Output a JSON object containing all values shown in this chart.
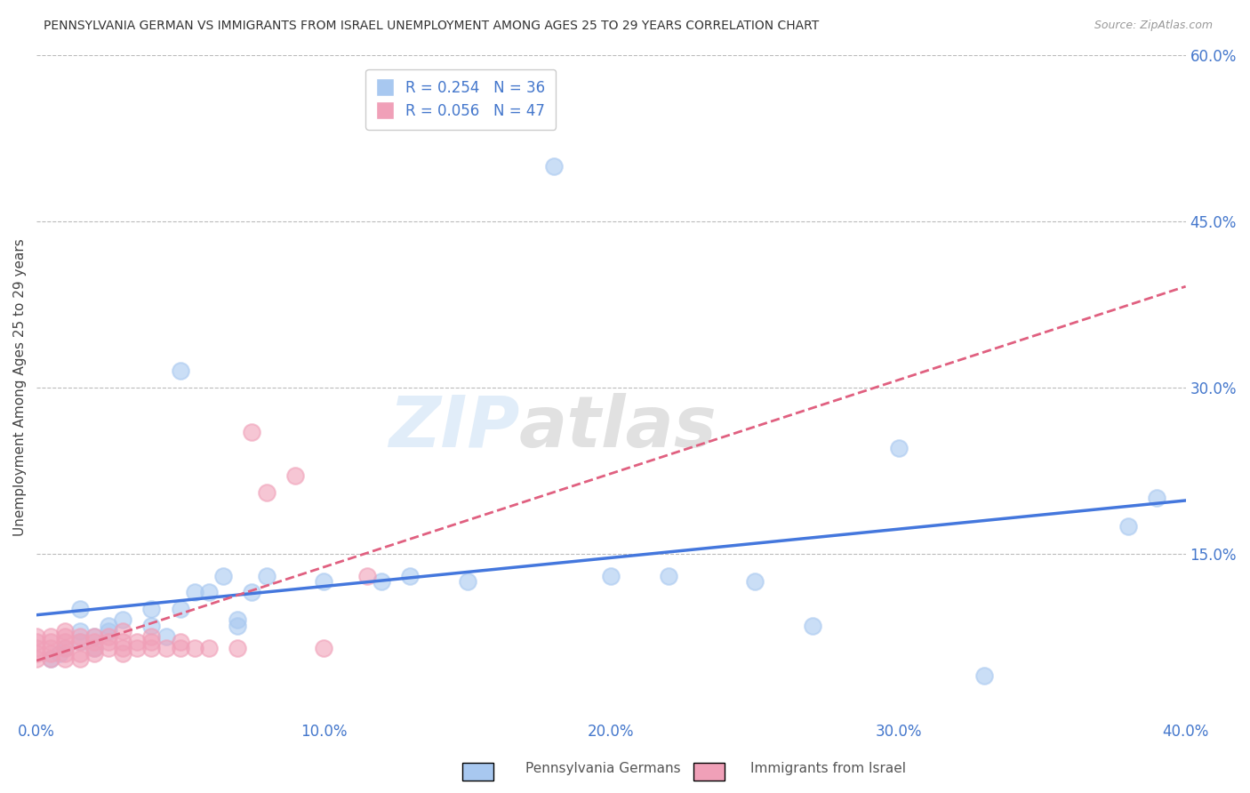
{
  "title": "PENNSYLVANIA GERMAN VS IMMIGRANTS FROM ISRAEL UNEMPLOYMENT AMONG AGES 25 TO 29 YEARS CORRELATION CHART",
  "source": "Source: ZipAtlas.com",
  "ylabel": "Unemployment Among Ages 25 to 29 years",
  "xlim": [
    0.0,
    0.4
  ],
  "ylim": [
    0.0,
    0.6
  ],
  "xticks": [
    0.0,
    0.1,
    0.2,
    0.3,
    0.4
  ],
  "yticks_right": [
    0.15,
    0.3,
    0.45,
    0.6
  ],
  "ytick_labels_right": [
    "15.0%",
    "30.0%",
    "45.0%",
    "60.0%"
  ],
  "xtick_labels": [
    "0.0%",
    "10.0%",
    "20.0%",
    "30.0%",
    "40.0%"
  ],
  "legend_blue_r": "R = 0.254",
  "legend_blue_n": "N = 36",
  "legend_pink_r": "R = 0.056",
  "legend_pink_n": "N = 47",
  "blue_color": "#A8C8F0",
  "pink_color": "#F0A0B8",
  "blue_line_color": "#4477DD",
  "pink_line_color": "#E06080",
  "legend_text_color": "#4477CC",
  "title_color": "#333333",
  "grid_color": "#BBBBBB",
  "watermark_zip": "ZIP",
  "watermark_atlas": "atlas",
  "blue_x": [
    0.005,
    0.008,
    0.01,
    0.015,
    0.015,
    0.015,
    0.02,
    0.02,
    0.025,
    0.025,
    0.03,
    0.04,
    0.04,
    0.045,
    0.05,
    0.05,
    0.055,
    0.06,
    0.065,
    0.07,
    0.075,
    0.07,
    0.08,
    0.1,
    0.12,
    0.13,
    0.15,
    0.18,
    0.2,
    0.22,
    0.25,
    0.27,
    0.3,
    0.33,
    0.38,
    0.39
  ],
  "blue_y": [
    0.055,
    0.06,
    0.065,
    0.07,
    0.08,
    0.1,
    0.065,
    0.075,
    0.08,
    0.085,
    0.09,
    0.085,
    0.1,
    0.075,
    0.315,
    0.1,
    0.115,
    0.115,
    0.13,
    0.09,
    0.115,
    0.085,
    0.13,
    0.125,
    0.125,
    0.13,
    0.125,
    0.5,
    0.13,
    0.13,
    0.125,
    0.085,
    0.245,
    0.04,
    0.175,
    0.2
  ],
  "pink_x": [
    0.0,
    0.0,
    0.0,
    0.0,
    0.0,
    0.005,
    0.005,
    0.005,
    0.005,
    0.005,
    0.01,
    0.01,
    0.01,
    0.01,
    0.01,
    0.01,
    0.015,
    0.015,
    0.015,
    0.015,
    0.02,
    0.02,
    0.02,
    0.02,
    0.025,
    0.025,
    0.025,
    0.03,
    0.03,
    0.03,
    0.03,
    0.035,
    0.035,
    0.04,
    0.04,
    0.04,
    0.045,
    0.05,
    0.05,
    0.055,
    0.06,
    0.07,
    0.075,
    0.08,
    0.09,
    0.1,
    0.115
  ],
  "pink_y": [
    0.055,
    0.06,
    0.065,
    0.07,
    0.075,
    0.055,
    0.06,
    0.065,
    0.07,
    0.075,
    0.055,
    0.06,
    0.065,
    0.07,
    0.075,
    0.08,
    0.055,
    0.06,
    0.07,
    0.075,
    0.06,
    0.065,
    0.07,
    0.075,
    0.065,
    0.07,
    0.075,
    0.06,
    0.065,
    0.07,
    0.08,
    0.065,
    0.07,
    0.065,
    0.07,
    0.075,
    0.065,
    0.065,
    0.07,
    0.065,
    0.065,
    0.065,
    0.26,
    0.205,
    0.22,
    0.065,
    0.13
  ]
}
